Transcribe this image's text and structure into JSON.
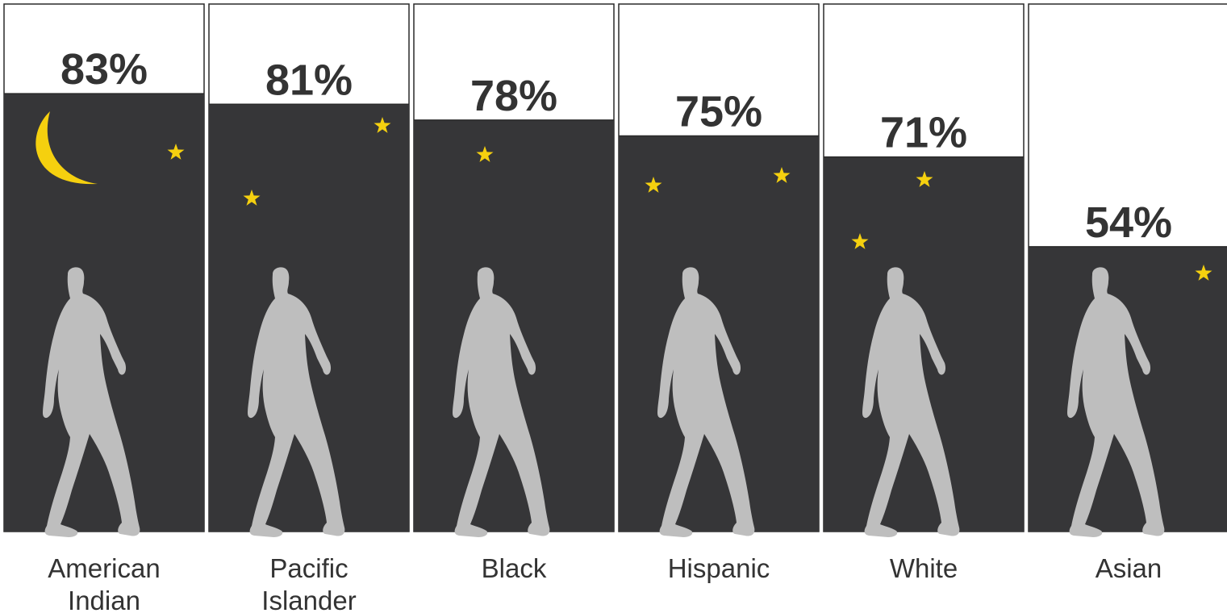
{
  "chart_data": {
    "type": "bar",
    "categories": [
      [
        "American",
        "Indian"
      ],
      [
        "Pacific",
        "Islander"
      ],
      [
        "Black"
      ],
      [
        "Hispanic"
      ],
      [
        "White"
      ],
      [
        "Asian"
      ]
    ],
    "values": [
      83,
      81,
      78,
      75,
      71,
      54
    ],
    "value_labels": [
      "83%",
      "81%",
      "78%",
      "75%",
      "71%",
      "54%"
    ],
    "ylim": [
      0,
      100
    ],
    "title": "",
    "xlabel": "",
    "ylabel": "",
    "grid": false,
    "legend": "none",
    "colors": {
      "bar_fill": "#363638",
      "background": "#ffffff",
      "panel_border": "#2a2a2a",
      "label_text": "#333333",
      "figure": "#bebebe",
      "moon": "#f5d00f",
      "star": "#f5d00f"
    },
    "icons": {
      "figure": "walking-person-icon",
      "moon": "crescent-moon-icon",
      "star": "star-icon"
    }
  }
}
